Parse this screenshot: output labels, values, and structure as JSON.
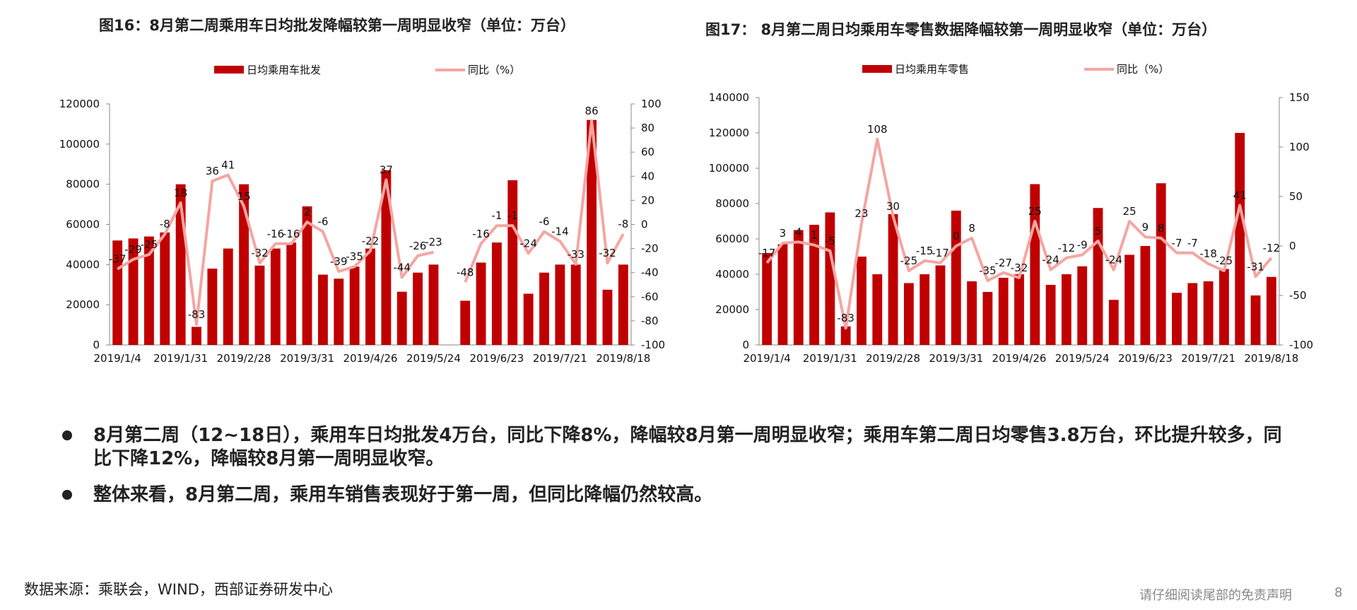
{
  "charts_text": {
    "fig16_title": "图16：8月第二周乘用车日均批发降幅较第一周明显收窄（单位：万台）",
    "fig17_title": "图17：  8月第二周日均乘用车零售数据降幅较第一周明显收窄（单位：万台）"
  },
  "chart_data": [
    {
      "type": "bar",
      "title": "图16：8月第二周乘用车日均批发降幅较第一周明显收窄（单位：万台）",
      "bar_color": "#c00000",
      "line_color": "#f4a6a3",
      "legend_placement": "top",
      "legend": [
        "日均乘用车批发",
        "同比（%）"
      ],
      "x_tick_labels": [
        "2019/1/4",
        "2019/1/31",
        "2019/2/28",
        "2019/3/31",
        "2019/4/26",
        "2019/5/24",
        "2019/6/23",
        "2019/7/21",
        "2019/8/18"
      ],
      "x_tick_indices": [
        0,
        4,
        8,
        12,
        16,
        20,
        24,
        28,
        32
      ],
      "y_left": {
        "min": 0,
        "max": 120000,
        "ticks": [
          0,
          20000,
          40000,
          60000,
          80000,
          100000,
          120000
        ]
      },
      "y_right": {
        "min": -100,
        "max": 100,
        "ticks": [
          -100,
          -80,
          -60,
          -40,
          -20,
          0,
          20,
          40,
          60,
          80,
          100
        ]
      },
      "categories": [
        "1",
        "2",
        "3",
        "4",
        "5",
        "6",
        "7",
        "8",
        "9",
        "10",
        "11",
        "12",
        "13",
        "14",
        "15",
        "16",
        "17",
        "18",
        "19",
        "20",
        "21",
        "22",
        "23",
        "24",
        "25",
        "26",
        "27",
        "28",
        "29",
        "30",
        "31",
        "32",
        "33"
      ],
      "series": [
        {
          "name": "日均乘用车批发",
          "kind": "bar",
          "values": [
            52000,
            53000,
            54000,
            56000,
            80000,
            9000,
            38000,
            48000,
            80000,
            39500,
            48000,
            51000,
            69000,
            35000,
            33000,
            39000,
            48000,
            87000,
            26500,
            36000,
            40000,
            null,
            22000,
            41000,
            51000,
            82000,
            25500,
            36000,
            40000,
            40000,
            112000,
            27500,
            40000
          ]
        },
        {
          "name": "同比（%）",
          "kind": "line",
          "values": [
            -37,
            -29,
            -25,
            -8,
            18,
            -83,
            36,
            41,
            15,
            -32,
            -16,
            -16,
            2,
            -6,
            -39,
            -35,
            -22,
            37,
            -44,
            -26,
            -23,
            null,
            -48,
            -16,
            -1,
            -1,
            -24,
            -6,
            -14,
            -33,
            86,
            -32,
            -8
          ]
        }
      ]
    },
    {
      "type": "bar",
      "title": "图17：  8月第二周日均乘用车零售数据降幅较第一周明显收窄（单位：万台）",
      "bar_color": "#c00000",
      "line_color": "#f4a6a3",
      "legend_placement": "top",
      "legend": [
        "日均乘用车零售",
        "同比（%）"
      ],
      "x_tick_labels": [
        "2019/1/4",
        "2019/1/31",
        "2019/2/28",
        "2019/3/31",
        "2019/4/26",
        "2019/5/24",
        "2019/6/23",
        "2019/7/21",
        "2019/8/18"
      ],
      "x_tick_indices": [
        0,
        4,
        8,
        12,
        16,
        20,
        24,
        28,
        32
      ],
      "y_left": {
        "min": 0,
        "max": 140000,
        "ticks": [
          0,
          20000,
          40000,
          60000,
          80000,
          100000,
          120000,
          140000
        ]
      },
      "y_right": {
        "min": -100,
        "max": 150,
        "ticks": [
          -100,
          -50,
          0,
          50,
          100,
          150
        ]
      },
      "categories": [
        "1",
        "2",
        "3",
        "4",
        "5",
        "6",
        "7",
        "8",
        "9",
        "10",
        "11",
        "12",
        "13",
        "14",
        "15",
        "16",
        "17",
        "18",
        "19",
        "20",
        "21",
        "22",
        "23",
        "24",
        "25",
        "26",
        "27",
        "28",
        "29",
        "30",
        "31",
        "32",
        "33"
      ],
      "series": [
        {
          "name": "日均乘用车零售",
          "kind": "bar",
          "values": [
            52000,
            57000,
            65000,
            68000,
            75000,
            10500,
            50000,
            40000,
            74000,
            35000,
            40000,
            45000,
            76000,
            36000,
            30000,
            38000,
            40000,
            91000,
            34000,
            40000,
            44500,
            77500,
            25500,
            51000,
            56000,
            91500,
            29500,
            35000,
            36000,
            43000,
            120000,
            28000,
            38500
          ]
        },
        {
          "name": "同比（%）",
          "kind": "line",
          "values": [
            -17,
            3,
            4,
            1,
            -5,
            -83,
            23,
            108,
            30,
            -25,
            -15,
            -17,
            0,
            8,
            -35,
            -27,
            -32,
            25,
            -24,
            -12,
            -9,
            5,
            -24,
            25,
            9,
            8,
            -7,
            -7,
            -18,
            -25,
            41,
            -31,
            -12
          ]
        }
      ]
    }
  ],
  "bullets": [
    "8月第二周（12~18日），乘用车日均批发4万台，同比下降8%，降幅较8月第一周明显收窄；乘用车第二周日均零售3.8万台，环比提升较多，同比下降12%，降幅较8月第一周明显收窄。",
    "整体来看，8月第二周，乘用车销售表现好于第一周，但同比降幅仍然较高。"
  ],
  "footer": {
    "source": "数据来源：乘联会，WIND，西部证券研发中心",
    "disclaimer": "请仔细阅读尾部的免责声明",
    "page": "8"
  }
}
